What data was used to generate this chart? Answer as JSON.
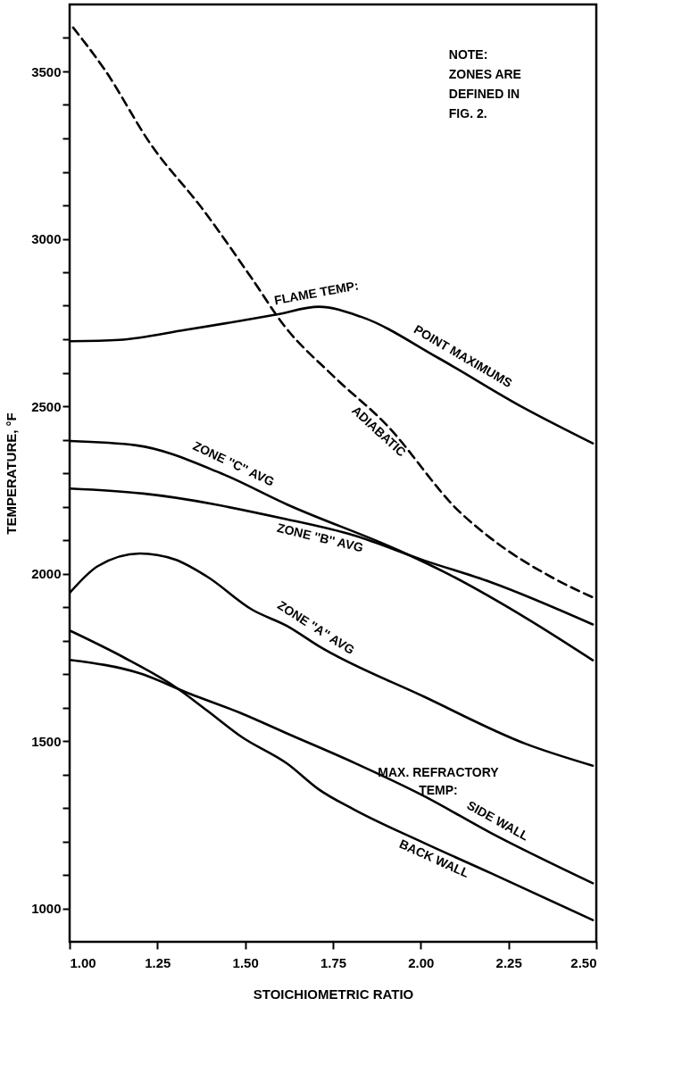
{
  "chart_data": {
    "type": "line",
    "xlabel": "STOICHIOMETRIC RATIO",
    "ylabel": "TEMPERATURE, °F",
    "xlim": [
      1.0,
      2.5
    ],
    "ylim": [
      900,
      3700
    ],
    "xticks": [
      {
        "value": 1.0,
        "label": "1.00"
      },
      {
        "value": 1.25,
        "label": "1.25"
      },
      {
        "value": 1.5,
        "label": "1.50"
      },
      {
        "value": 1.75,
        "label": "1.75"
      },
      {
        "value": 2.0,
        "label": "2.00"
      },
      {
        "value": 2.25,
        "label": "2.25"
      },
      {
        "value": 2.5,
        "label": "2.50"
      }
    ],
    "yticks": [
      1000,
      {
        "value": 1100,
        "label": null
      },
      {
        "value": 1200,
        "label": null
      },
      {
        "value": 1300,
        "label": null
      },
      {
        "value": 1400,
        "label": null
      },
      1500,
      {
        "value": 1600,
        "label": null
      },
      {
        "value": 1700,
        "label": null
      },
      {
        "value": 1800,
        "label": null
      },
      {
        "value": 1900,
        "label": null
      },
      2000,
      {
        "value": 2100,
        "label": null
      },
      {
        "value": 2200,
        "label": null
      },
      {
        "value": 2300,
        "label": null
      },
      {
        "value": 2400,
        "label": null
      },
      2500,
      {
        "value": 2600,
        "label": null
      },
      {
        "value": 2700,
        "label": null
      },
      {
        "value": 2800,
        "label": null
      },
      {
        "value": 2900,
        "label": null
      },
      3000,
      {
        "value": 3100,
        "label": null
      },
      {
        "value": 3200,
        "label": null
      },
      {
        "value": 3300,
        "label": null
      },
      {
        "value": 3400,
        "label": null
      },
      3500,
      {
        "value": 3600,
        "label": null
      }
    ],
    "grid": false,
    "series": [
      {
        "color": "#000000",
        "line_style": "solid",
        "x": [
          1.0,
          1.14,
          1.33,
          1.59,
          1.71,
          1.83,
          2.05,
          2.29,
          2.49
        ],
        "values": [
          2694,
          2698,
          2728,
          2774,
          2797,
          2767,
          2644,
          2497,
          2389
        ]
      },
      {
        "color": "#000000",
        "line_style": "dashed",
        "x": [
          1.01,
          1.1,
          1.23,
          1.38,
          1.52,
          1.61,
          1.75,
          1.9,
          2.11,
          2.2,
          2.38,
          2.49
        ],
        "values": [
          3631,
          3505,
          3284,
          3087,
          2880,
          2742,
          2591,
          2447,
          2185,
          2105,
          1985,
          1929
        ]
      },
      {
        "color": "#000000",
        "line_style": "solid",
        "x": [
          1.0,
          1.19,
          1.43,
          1.62,
          1.94,
          2.07,
          2.3,
          2.49
        ],
        "values": [
          2396,
          2383,
          2300,
          2206,
          2068,
          2003,
          1867,
          1741
        ]
      },
      {
        "color": "#000000",
        "line_style": "solid",
        "x": [
          1.0,
          1.21,
          1.61,
          1.81,
          2.01,
          2.2,
          2.49
        ],
        "values": [
          2254,
          2239,
          2164,
          2114,
          2039,
          1974,
          1848
        ]
      },
      {
        "color": "#000000",
        "line_style": "solid",
        "x": [
          1.0,
          1.08,
          1.2,
          1.3,
          1.39,
          1.52,
          1.62,
          1.71,
          2.01,
          2.3,
          2.49
        ],
        "values": [
          1942,
          2022,
          2060,
          2042,
          1992,
          1892,
          1843,
          1783,
          1632,
          1491,
          1426
        ]
      },
      {
        "color": "#000000",
        "line_style": "solid",
        "x": [
          1.0,
          1.2,
          1.34,
          1.49,
          1.62,
          1.81,
          2.01,
          2.2,
          2.49
        ],
        "values": [
          1742,
          1702,
          1642,
          1582,
          1522,
          1435,
          1335,
          1225,
          1075
        ]
      },
      {
        "color": "#000000",
        "line_style": "solid",
        "x": [
          1.0,
          1.15,
          1.3,
          1.39,
          1.49,
          1.62,
          1.71,
          1.81,
          2.01,
          2.2,
          2.49
        ],
        "values": [
          1830,
          1752,
          1662,
          1592,
          1512,
          1432,
          1355,
          1295,
          1195,
          1105,
          965
        ]
      }
    ],
    "annotations": [
      "NOTE:\nZONES ARE\nDEFINED IN\nFIG. 2.",
      {
        "text": "FLAME TEMP:",
        "x": 1.71,
        "y": 2797
      },
      {
        "text": "POINT  MAXIMUMS",
        "x": 2.1,
        "y": 2613
      },
      {
        "text": "ADIABATIC",
        "x": 1.9,
        "y": 2447
      },
      {
        "text": "ZONE ''C'' AVG",
        "x": 1.45,
        "y": 2290
      },
      {
        "text": "ZONE ''B'' AVG",
        "x": 1.72,
        "y": 2136
      },
      {
        "text": "ZONE ''A'' AVG",
        "x": 1.68,
        "y": 1803
      },
      {
        "text": "MAX. REFRACTORY\nTEMP:",
        "x": 2.05,
        "y": 1312
      },
      {
        "text": "SIDE WALL",
        "x": 2.2,
        "y": 1225
      },
      {
        "text": "BACK WALL",
        "x": 2.05,
        "y": 1176
      }
    ]
  }
}
